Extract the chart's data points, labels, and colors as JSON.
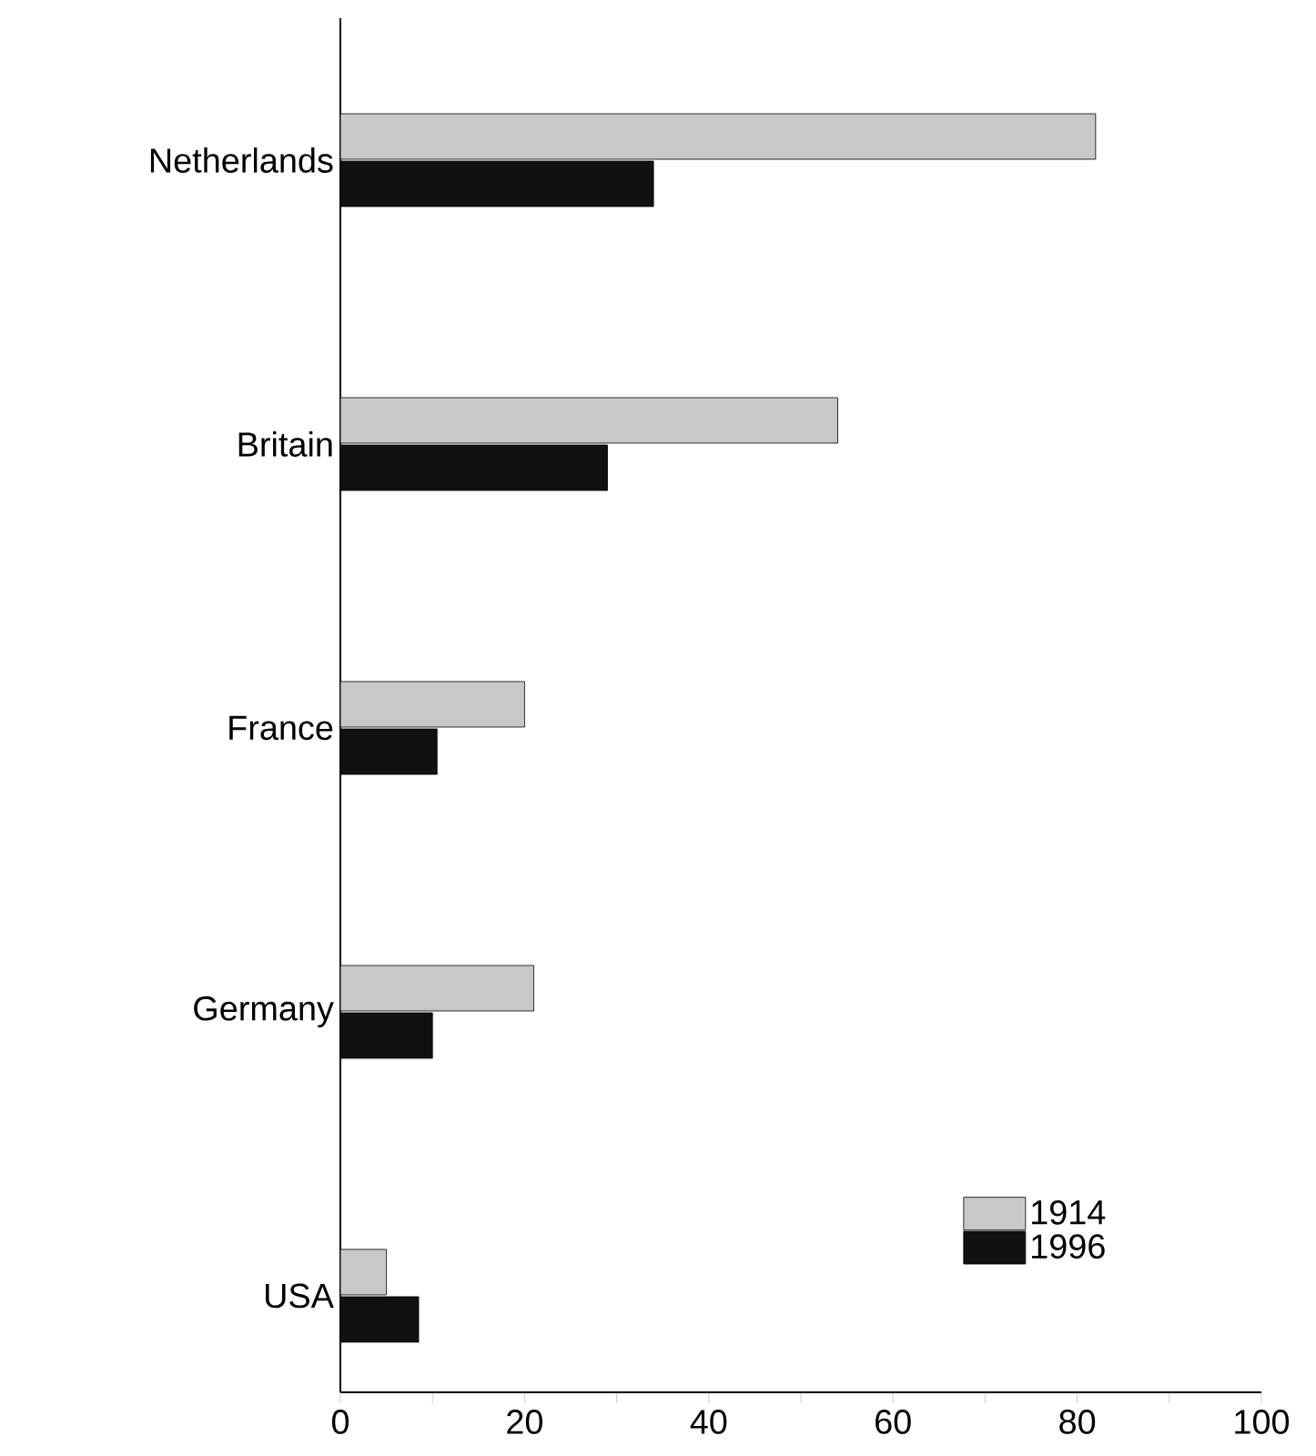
{
  "chart_data": {
    "type": "bar",
    "orientation": "horizontal",
    "categories": [
      "Netherlands",
      "Britain",
      "France",
      "Germany",
      "USA"
    ],
    "series": [
      {
        "name": "1914",
        "color": "#c8c8c8",
        "values": [
          82,
          54,
          20,
          21,
          5
        ]
      },
      {
        "name": "1996",
        "color": "#111111",
        "values": [
          34,
          29,
          10.5,
          10,
          8.5
        ]
      }
    ],
    "xlim": [
      0,
      100
    ],
    "xticks": [
      0,
      {
        "value": 10,
        "label": null
      },
      20,
      {
        "value": 30,
        "label": null
      },
      40,
      {
        "value": 50,
        "label": null
      },
      60,
      {
        "value": 70,
        "label": null
      },
      80,
      {
        "value": 90,
        "label": null
      },
      100
    ],
    "legend": "bottom right",
    "grid": false
  }
}
